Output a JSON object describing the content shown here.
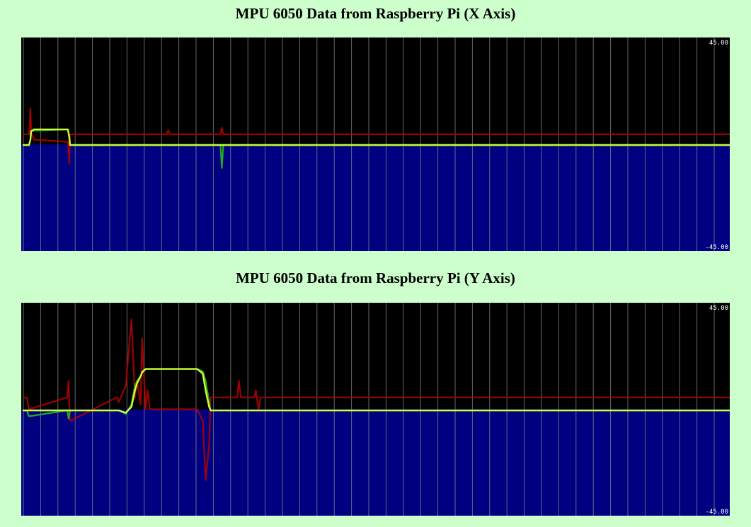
{
  "chart_data": [
    {
      "type": "line",
      "title": "MPU 6050 Data from Raspberry Pi (X Axis)",
      "ylim": [
        -45,
        45
      ],
      "ytick_labels": {
        "max": "45.00",
        "min": "-45.00"
      },
      "grid": "vertical",
      "background_colors": {
        "positive": "#000000",
        "negative": "#000080"
      },
      "colors": {
        "grid": "#8a8a8a",
        "raw": "#b00000",
        "filtered": "#22aa22",
        "smoothed": "#ccff33"
      },
      "x": [
        0,
        0.8,
        1,
        1.1,
        1.5,
        6.3,
        6.5,
        6.6,
        20.3,
        20.5,
        20.7,
        22.5,
        22.7,
        27.9,
        28.1,
        28.3,
        100
      ],
      "series": [
        {
          "values": [
            4.2,
            4.2,
            15,
            5,
            2,
            1,
            -8,
            4.2,
            4.2,
            6,
            4.2,
            4.2,
            4.2,
            4.2,
            7,
            4.2,
            4.2
          ]
        },
        {
          "values": [
            -0.3,
            -0.3,
            2,
            5.5,
            5.8,
            6.2,
            3,
            -0.3,
            -0.3,
            -0.3,
            -0.3,
            -0.3,
            -0.3,
            -0.3,
            -10,
            -0.3,
            -0.3
          ]
        },
        {
          "values": [
            -0.3,
            -0.3,
            2,
            5.5,
            6.3,
            6.3,
            3,
            -0.3,
            -0.3,
            -0.3,
            -0.3,
            -0.3,
            -0.3,
            -0.3,
            -0.3,
            -0.3,
            -0.3
          ]
        }
      ]
    },
    {
      "type": "line",
      "title": "MPU 6050 Data from Raspberry Pi (Y Axis)",
      "ylim": [
        -45,
        45
      ],
      "ytick_labels": {
        "max": "45.00",
        "min": "-45.00"
      },
      "grid": "vertical",
      "background_colors": {
        "positive": "#000000",
        "negative": "#000080"
      },
      "colors": {
        "grid": "#8a8a8a",
        "raw": "#b00000",
        "filtered": "#22aa22",
        "smoothed": "#ccff33"
      },
      "x": [
        0,
        0.5,
        0.8,
        6.2,
        6.4,
        6.6,
        13.2,
        13.3,
        13.5,
        14.5,
        15.3,
        15.8,
        16.1,
        16.6,
        16.8,
        17.3,
        17.6,
        17.9,
        18.3,
        24.6,
        25.4,
        25.8,
        26.3,
        26.5,
        30.3,
        30.5,
        30.8,
        32.7,
        32.9,
        33.3,
        33.6,
        100
      ],
      "series": [
        {
          "values": [
            5,
            5,
            0,
            5,
            12,
            -5,
            5,
            5,
            3,
            10,
            38,
            5,
            12,
            2,
            30,
            0,
            8,
            0,
            0,
            0,
            -5,
            -30,
            -15,
            5,
            5,
            12,
            5,
            5,
            8,
            0,
            5,
            5
          ]
        },
        {
          "values": [
            -0.5,
            -0.5,
            -3,
            -0.5,
            -4,
            -0.5,
            -0.5,
            -0.5,
            -0.5,
            -2,
            2,
            10,
            12,
            14,
            16,
            17,
            17,
            17,
            17,
            17,
            16,
            12,
            3,
            -0.5,
            -0.5,
            -0.5,
            -0.5,
            -0.5,
            -0.5,
            -0.5,
            -0.5,
            -0.5
          ]
        },
        {
          "values": [
            -0.5,
            -0.5,
            -0.5,
            -0.5,
            -0.5,
            -0.5,
            -0.5,
            -0.5,
            -0.5,
            -1.5,
            1,
            8,
            11,
            14,
            15.5,
            17,
            17,
            17,
            17,
            17,
            15,
            8,
            1,
            -0.5,
            -0.5,
            -0.5,
            -0.5,
            -0.5,
            -0.5,
            -0.5,
            -0.5,
            -0.5
          ]
        }
      ]
    }
  ]
}
